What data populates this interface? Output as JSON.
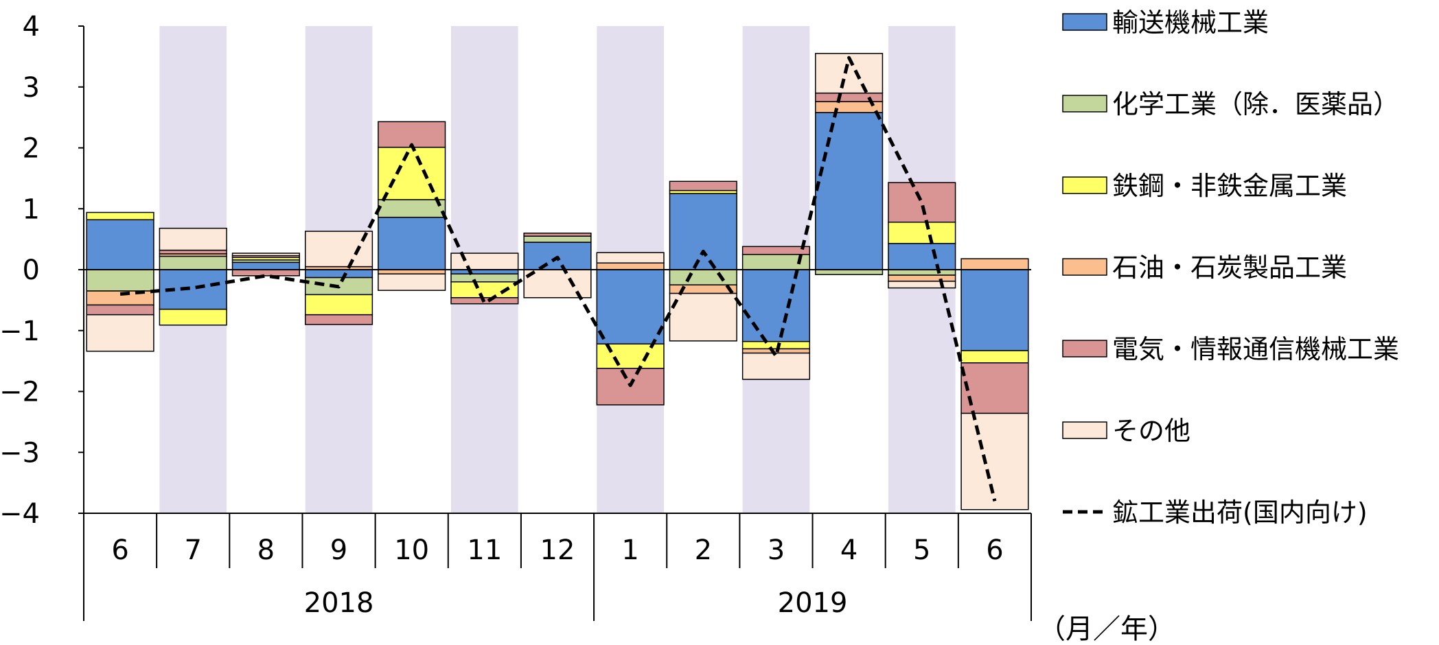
{
  "chart_data": {
    "type": "bar",
    "stacked": true,
    "ylim": [
      -4,
      4
    ],
    "yticks": [
      "4",
      "3",
      "2",
      "1",
      "0",
      "−1",
      "−2",
      "−3",
      "−4"
    ],
    "categories": [
      "6",
      "7",
      "8",
      "9",
      "10",
      "11",
      "12",
      "1",
      "2",
      "3",
      "4",
      "5",
      "6"
    ],
    "year_groups": [
      {
        "label": "2018",
        "span": 7
      },
      {
        "label": "2019",
        "span": 6
      }
    ],
    "axis_unit": "（月／年）",
    "shaded_months": [
      "7",
      "9",
      "11",
      "1",
      "3",
      "5"
    ],
    "series": [
      {
        "name": "輸送機械工業",
        "color": "#5b8fd6",
        "values": [
          0.82,
          -0.65,
          0.12,
          -0.13,
          0.86,
          -0.07,
          0.45,
          -1.22,
          1.25,
          -1.18,
          2.58,
          0.43,
          -1.33
        ]
      },
      {
        "name": "化学工業（除．医薬品）",
        "color": "#c3d69b",
        "values": [
          -0.35,
          0.22,
          0.04,
          -0.28,
          0.29,
          -0.13,
          0.1,
          0.0,
          -0.25,
          0.25,
          -0.08,
          -0.09,
          0.0
        ]
      },
      {
        "name": "鉄鋼・非鉄金属工業",
        "color": "#ffff66",
        "values": [
          0.12,
          -0.26,
          0.04,
          -0.33,
          0.86,
          -0.26,
          0.0,
          -0.4,
          0.05,
          -0.12,
          0.0,
          0.35,
          -0.2
        ]
      },
      {
        "name": "石油・石炭製品工業",
        "color": "#fbbf8f",
        "values": [
          -0.23,
          0.04,
          0.03,
          0.05,
          -0.07,
          0.0,
          0.0,
          0.11,
          -0.14,
          -0.07,
          0.18,
          -0.1,
          0.18
        ]
      },
      {
        "name": "電気・情報通信機械工業",
        "color": "#d99594",
        "values": [
          -0.16,
          0.06,
          -0.1,
          -0.16,
          0.42,
          -0.1,
          0.05,
          -0.6,
          0.15,
          0.13,
          0.14,
          0.65,
          -0.83
        ]
      },
      {
        "name": "その他",
        "color": "#fde9d9",
        "values": [
          -0.6,
          0.36,
          0.04,
          0.58,
          -0.27,
          0.27,
          -0.46,
          0.17,
          -0.78,
          -0.43,
          0.65,
          -0.11,
          -1.58
        ]
      }
    ],
    "line": {
      "name": "鉱工業出荷(国内向け)",
      "values": [
        -0.4,
        -0.3,
        -0.1,
        -0.28,
        2.05,
        -0.55,
        0.2,
        -1.9,
        0.3,
        -1.42,
        3.48,
        1.1,
        -3.8
      ]
    }
  }
}
